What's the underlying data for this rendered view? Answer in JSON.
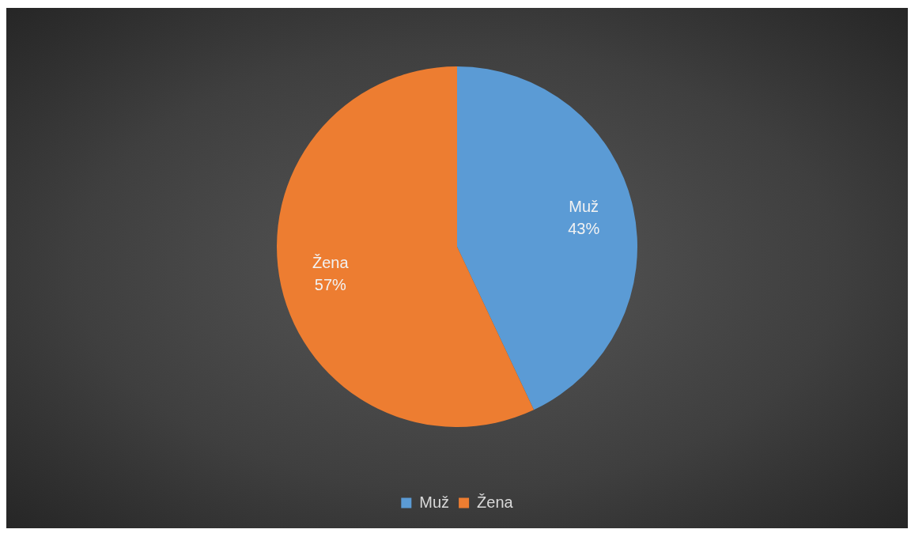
{
  "chart_data": {
    "type": "pie",
    "categories": [
      "Muž",
      "Žena"
    ],
    "values": [
      43,
      57
    ],
    "value_labels": [
      "43%",
      "57%"
    ],
    "colors": [
      "#5b9bd5",
      "#ed7d31"
    ],
    "legend": "bottom"
  }
}
